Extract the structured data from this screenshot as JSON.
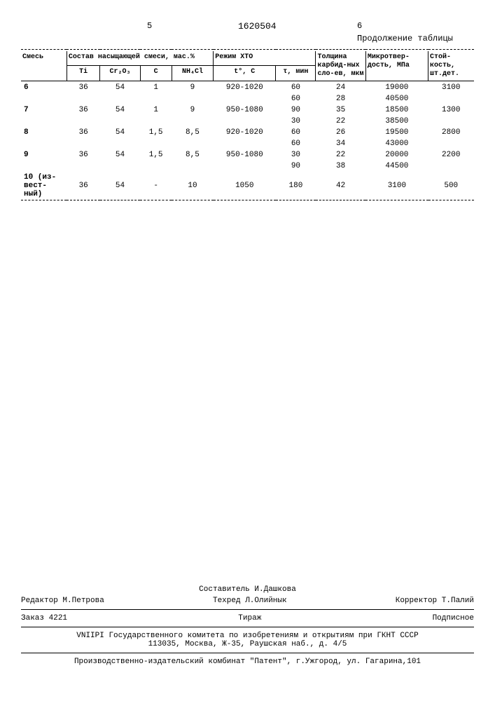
{
  "header": {
    "page_left_col": "5",
    "doc_number": "1620504",
    "page_right_col": "6",
    "continuation": "Продолжение таблицы"
  },
  "table": {
    "group_headers": {
      "mix": "Смесь",
      "composition": "Состав насыщающей смеси, мас.%",
      "regime": "Режим ХТО",
      "thickness": "Толщина карбид-ных сло-ев, мкм",
      "microhardness": "Микротвер-дость, МПа",
      "durability": "Стой-кость, шт.дет."
    },
    "sub_headers": {
      "Ti": "Ti",
      "Cr2O3": "Cr₂O₃",
      "C": "C",
      "NH4Cl": "NH₄Cl",
      "temp": "t°, С",
      "time": "τ, мин"
    },
    "rows": [
      {
        "mix": "6",
        "Ti": "36",
        "Cr2O3": "54",
        "C": "1",
        "NH4Cl": "9",
        "temp": "920-1020",
        "time": "60",
        "thick": "24",
        "hard": "19000",
        "dur": "3100"
      },
      {
        "mix": "",
        "Ti": "",
        "Cr2O3": "",
        "C": "",
        "NH4Cl": "",
        "temp": "",
        "time": "60",
        "thick": "28",
        "hard": "40500",
        "dur": ""
      },
      {
        "mix": "7",
        "Ti": "36",
        "Cr2O3": "54",
        "C": "1",
        "NH4Cl": "9",
        "temp": "950-1080",
        "time": "90",
        "thick": "35",
        "hard": "18500",
        "dur": "1300"
      },
      {
        "mix": "",
        "Ti": "",
        "Cr2O3": "",
        "C": "",
        "NH4Cl": "",
        "temp": "",
        "time": "30",
        "thick": "22",
        "hard": "38500",
        "dur": ""
      },
      {
        "mix": "8",
        "Ti": "36",
        "Cr2O3": "54",
        "C": "1,5",
        "NH4Cl": "8,5",
        "temp": "920-1020",
        "time": "60",
        "thick": "26",
        "hard": "19500",
        "dur": "2800"
      },
      {
        "mix": "",
        "Ti": "",
        "Cr2O3": "",
        "C": "",
        "NH4Cl": "",
        "temp": "",
        "time": "60",
        "thick": "34",
        "hard": "43000",
        "dur": ""
      },
      {
        "mix": "9",
        "Ti": "36",
        "Cr2O3": "54",
        "C": "1,5",
        "NH4Cl": "8,5",
        "temp": "950-1080",
        "time": "30",
        "thick": "22",
        "hard": "20000",
        "dur": "2200"
      },
      {
        "mix": "",
        "Ti": "",
        "Cr2O3": "",
        "C": "",
        "NH4Cl": "",
        "temp": "",
        "time": "90",
        "thick": "38",
        "hard": "44500",
        "dur": ""
      },
      {
        "mix": "10 (из-вест-ный)",
        "Ti": "36",
        "Cr2O3": "54",
        "C": "-",
        "NH4Cl": "10",
        "temp": "1050",
        "time": "180",
        "thick": "42",
        "hard": "3100",
        "dur": "500"
      }
    ]
  },
  "footer": {
    "compiler_label": "Составитель",
    "compiler_name": "И.Дашкова",
    "editor_label": "Редактор",
    "editor_name": "М.Петрова",
    "techred_label": "Техред",
    "techred_name": "Л.Олийнык",
    "corrector_label": "Корректор",
    "corrector_name": "Т.Палий",
    "order_label": "Заказ",
    "order_num": "4221",
    "tiraz": "Тираж",
    "podpisnoe": "Подписное",
    "vniipi": "VNIIPI Государственного комитета по изобретениям и открытиям при ГКНТ СССР",
    "vniipi_addr": "113035, Москва, Ж-35, Раушская наб., д. 4/5",
    "publisher": "Производственно-издательский комбинат \"Патент\", г.Ужгород, ул. Гагарина,101"
  }
}
